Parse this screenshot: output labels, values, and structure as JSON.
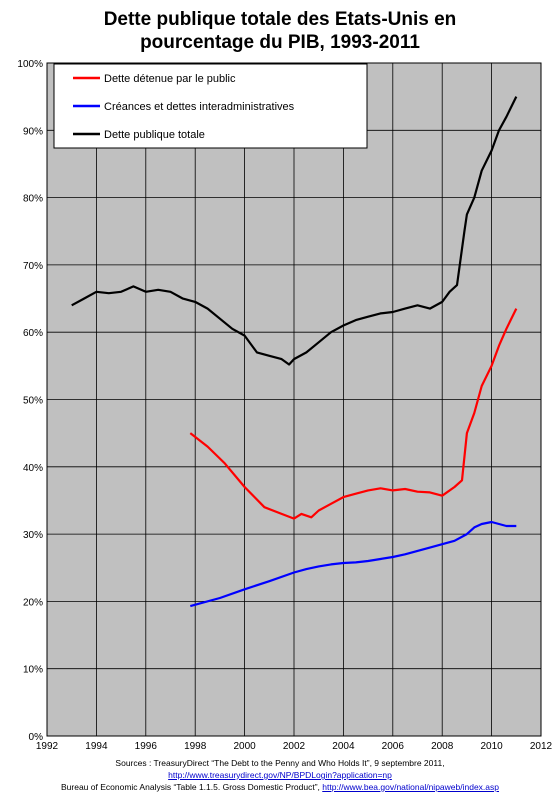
{
  "title_line1": "Dette publique totale des Etats-Unis en",
  "title_line2": "pourcentage du PIB, 1993-2011",
  "sources": {
    "line1": "Sources : TreasuryDirect “The Debt to the Penny and Who Holds It”, 9 septembre 2011,",
    "link1": "http://www.treasurydirect.gov/NP/BPDLogin?application=np",
    "line3_text": "Bureau of Economic Analysis “Table 1.1.5. Gross Domestic Product”,",
    "link2": "http://www.bea.gov/national/nipaweb/index.asp"
  },
  "chart_data": {
    "type": "line",
    "xlim": [
      1992,
      2012
    ],
    "ylim": [
      0,
      100
    ],
    "x_ticks": [
      "1992",
      "1994",
      "1996",
      "1998",
      "2000",
      "2002",
      "2004",
      "2006",
      "2008",
      "2010",
      "2012"
    ],
    "y_ticks": [
      "0%",
      "10%",
      "20%",
      "30%",
      "40%",
      "50%",
      "60%",
      "70%",
      "80%",
      "90%",
      "100%"
    ],
    "grid": true,
    "plot_background": "#c0c0c0",
    "legend_position": "top-left",
    "series": [
      {
        "name": "Dette détenue par le public",
        "color": "#ff0000",
        "x": [
          1997.8,
          1998.5,
          1999.2,
          2000.0,
          2000.8,
          2001.5,
          2002.0,
          2002.3,
          2002.7,
          2003.0,
          2003.5,
          2004.0,
          2004.5,
          2005.0,
          2005.5,
          2006.0,
          2006.5,
          2007.0,
          2007.5,
          2008.0,
          2008.5,
          2008.8,
          2009.0,
          2009.3,
          2009.6,
          2010.0,
          2010.3,
          2010.6,
          2011.0
        ],
        "values": [
          45,
          43,
          40.5,
          37,
          34,
          33,
          32.3,
          33,
          32.5,
          33.5,
          34.5,
          35.5,
          36,
          36.5,
          36.8,
          36.5,
          36.7,
          36.3,
          36.2,
          35.7,
          37,
          38,
          45,
          48,
          52,
          55,
          58,
          60.5,
          63.5
        ]
      },
      {
        "name": "Créances et dettes interadministratives",
        "color": "#0000ff",
        "x": [
          1997.8,
          1999.0,
          2000.0,
          2001.0,
          2002.0,
          2002.5,
          2003.0,
          2003.5,
          2004.0,
          2004.5,
          2005.0,
          2005.5,
          2006.0,
          2006.5,
          2007.0,
          2007.5,
          2008.0,
          2008.5,
          2009.0,
          2009.3,
          2009.6,
          2010.0,
          2010.3,
          2010.6,
          2011.0
        ],
        "values": [
          19.3,
          20.5,
          21.8,
          23.0,
          24.3,
          24.8,
          25.2,
          25.5,
          25.7,
          25.8,
          26.0,
          26.3,
          26.6,
          27.0,
          27.5,
          28.0,
          28.5,
          29.0,
          30.0,
          31.0,
          31.5,
          31.8,
          31.5,
          31.2,
          31.2
        ]
      },
      {
        "name": "Dette publique totale",
        "color": "#000000",
        "x": [
          1993.0,
          1993.5,
          1994.0,
          1994.5,
          1995.0,
          1995.5,
          1996.0,
          1996.5,
          1997.0,
          1997.5,
          1998.0,
          1998.5,
          1999.0,
          1999.5,
          2000.0,
          2000.5,
          2001.0,
          2001.5,
          2001.8,
          2002.0,
          2002.5,
          2003.0,
          2003.5,
          2004.0,
          2004.5,
          2005.0,
          2005.5,
          2006.0,
          2006.5,
          2007.0,
          2007.5,
          2008.0,
          2008.3,
          2008.6,
          2008.9,
          2009.0,
          2009.3,
          2009.6,
          2010.0,
          2010.3,
          2010.6,
          2011.0
        ],
        "values": [
          64.0,
          65.0,
          66.0,
          65.8,
          66.0,
          66.8,
          66.0,
          66.3,
          66.0,
          65.0,
          64.5,
          63.5,
          62.0,
          60.5,
          59.5,
          57.0,
          56.5,
          56.0,
          55.2,
          56.0,
          57.0,
          58.5,
          60.0,
          61.0,
          61.8,
          62.3,
          62.8,
          63.0,
          63.5,
          64.0,
          63.5,
          64.5,
          66.0,
          67.0,
          75.0,
          77.5,
          80.0,
          84.0,
          87.0,
          90.0,
          92.0,
          95.0
        ]
      }
    ]
  }
}
